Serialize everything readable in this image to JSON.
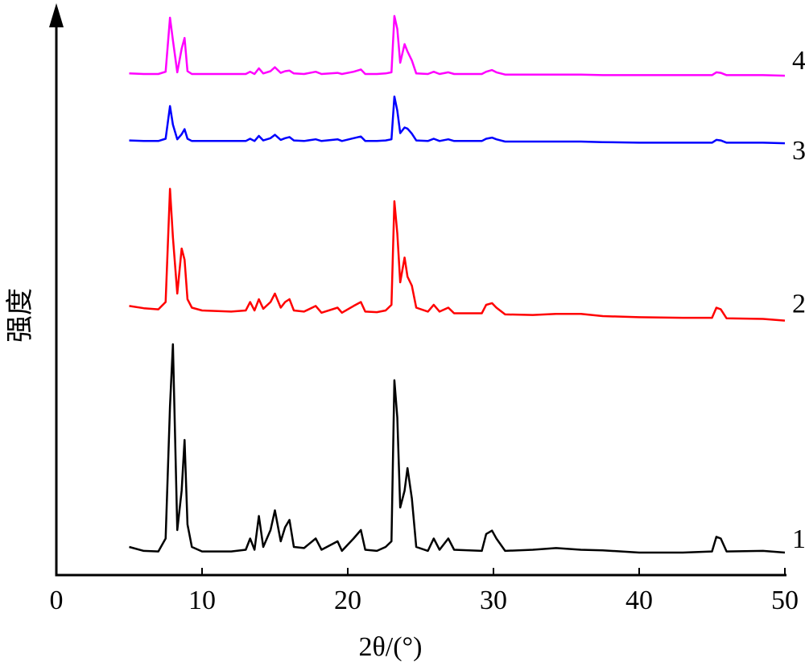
{
  "chart_data": {
    "type": "line",
    "xlabel": "2θ/(°)",
    "ylabel": "强度",
    "xlim": [
      0,
      50
    ],
    "xticks": [
      0,
      10,
      20,
      30,
      40,
      50
    ],
    "ylim": [
      0,
      100
    ],
    "x": [
      5,
      6,
      7,
      7.5,
      7.8,
      8.0,
      8.3,
      8.6,
      8.8,
      9.0,
      9.3,
      10,
      12,
      13,
      13.3,
      13.6,
      13.9,
      14.2,
      14.7,
      15.0,
      15.4,
      15.7,
      16.0,
      16.3,
      17,
      17.8,
      18.2,
      19.3,
      19.6,
      20.4,
      20.9,
      21.2,
      22,
      22.6,
      23.0,
      23.2,
      23.4,
      23.6,
      23.9,
      24.1,
      24.4,
      24.7,
      25.5,
      25.9,
      26.3,
      26.9,
      27.3,
      29.2,
      29.5,
      29.9,
      30.2,
      30.8,
      32.7,
      34.3,
      36,
      37.5,
      40,
      43,
      45,
      45.3,
      45.6,
      46,
      48.5,
      50
    ],
    "series": [
      {
        "name": "1",
        "color": "#000000",
        "values": [
          5.0,
          4.3,
          4.2,
          6.5,
          30,
          41,
          8,
          15,
          24,
          9,
          5,
          4.2,
          4.2,
          4.5,
          6.5,
          4.5,
          10.5,
          5,
          8,
          11.5,
          6,
          8.5,
          9.8,
          5,
          4.8,
          6.5,
          4.5,
          6,
          4.3,
          6.5,
          8,
          4.5,
          4.3,
          5,
          6,
          34.6,
          28,
          12,
          15,
          19,
          13.6,
          5,
          4.3,
          6.5,
          4.5,
          6.5,
          4.5,
          4.3,
          7.3,
          7.9,
          6.5,
          4.3,
          4.5,
          4.8,
          4.5,
          4.4,
          4.0,
          4.0,
          4.2,
          6.8,
          6.5,
          4.2,
          4.3,
          4.0
        ]
      },
      {
        "name": "2",
        "color": "#ff0000",
        "values": [
          47.8,
          47.4,
          47.2,
          48.5,
          68.6,
          60,
          50,
          58,
          56,
          49,
          47.5,
          47,
          46.8,
          47,
          48.5,
          47,
          49,
          47.3,
          48.5,
          50,
          47.5,
          48.5,
          49,
          47,
          46.8,
          47.8,
          46.6,
          47.5,
          46.6,
          47.8,
          48.5,
          46.8,
          46.7,
          47,
          48,
          66.4,
          60.7,
          52,
          56.4,
          53,
          51.4,
          47.5,
          46.8,
          48,
          46.8,
          47.5,
          46.5,
          46.5,
          48,
          48.3,
          47.5,
          46.3,
          46.2,
          46.4,
          46.4,
          46,
          45.8,
          45.7,
          45.7,
          47.5,
          47.2,
          45.6,
          45.5,
          45.2
        ]
      },
      {
        "name": "3",
        "color": "#0000ff",
        "values": [
          77.2,
          77.1,
          77.1,
          77.5,
          83.3,
          80,
          77.4,
          78.3,
          79.2,
          77.5,
          77.1,
          77.1,
          77.1,
          77.1,
          77.5,
          77.1,
          78,
          77.2,
          77.6,
          78.2,
          77.3,
          77.6,
          77.8,
          77.2,
          77.1,
          77.4,
          77.1,
          77.4,
          77.1,
          77.6,
          77.9,
          77.1,
          77.1,
          77.2,
          77.4,
          85,
          82.5,
          78.5,
          79.5,
          79.3,
          78.4,
          77.2,
          77.1,
          77.5,
          77.1,
          77.4,
          77.1,
          77.1,
          77.5,
          77.7,
          77.4,
          77,
          77,
          77,
          77,
          76.9,
          76.8,
          76.8,
          76.8,
          77.3,
          77.2,
          76.8,
          76.8,
          76.7
        ]
      },
      {
        "name": "4",
        "color": "#ff00ff",
        "values": [
          89.1,
          89,
          89,
          89.4,
          99,
          95,
          89.3,
          93.5,
          95.4,
          89.5,
          89,
          89,
          89,
          89,
          89.4,
          89,
          90,
          89.1,
          89.5,
          90.2,
          89.2,
          89.5,
          89.6,
          89.1,
          89,
          89.4,
          89,
          89.2,
          89,
          89.4,
          89.8,
          89,
          89,
          89.1,
          89.3,
          99.3,
          97,
          91,
          94.3,
          93,
          91.4,
          89.1,
          89,
          89.4,
          89,
          89.3,
          89,
          89,
          89.4,
          89.7,
          89.3,
          88.9,
          88.9,
          88.9,
          88.9,
          88.8,
          88.8,
          88.8,
          88.8,
          89.3,
          89.2,
          88.8,
          88.8,
          88.7
        ]
      }
    ]
  }
}
